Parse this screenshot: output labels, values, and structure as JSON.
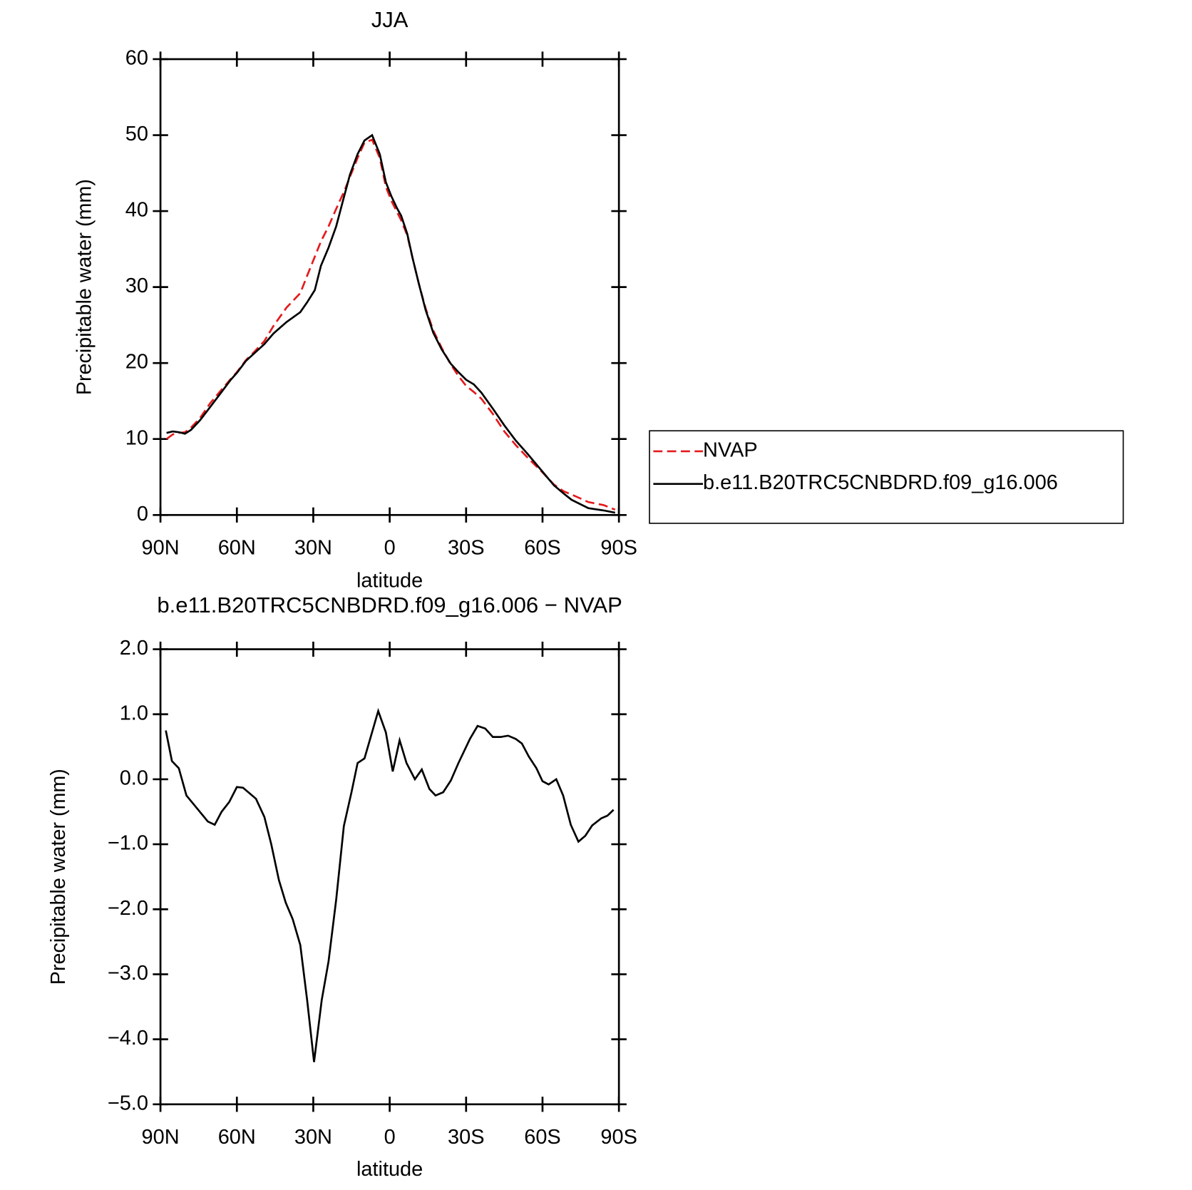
{
  "chart_data": [
    {
      "type": "line",
      "title": "JJA",
      "x_label": "latitude",
      "y_label": "Precipitable water (mm)",
      "xlim": [
        90,
        -90
      ],
      "xticks": [
        {
          "value": 90,
          "label": "90N"
        },
        {
          "value": 60,
          "label": "60N"
        },
        {
          "value": 30,
          "label": "30N"
        },
        0,
        {
          "value": -30,
          "label": "30S"
        },
        {
          "value": -60,
          "label": "60S"
        },
        {
          "value": -90,
          "label": "90S"
        }
      ],
      "ylim": [
        0,
        60
      ],
      "yticks": [
        0,
        10,
        20,
        30,
        40,
        50,
        60
      ],
      "legend": "right",
      "x": [
        87.6,
        85.2,
        82.8,
        80.4,
        78,
        74.4,
        70.5,
        66,
        62.4,
        60,
        56.4,
        53.1,
        49.2,
        45.6,
        40.5,
        35.1,
        32.4,
        29.4,
        27,
        24,
        21,
        18,
        15.6,
        12.6,
        9.9,
        6.9,
        3.9,
        1.5,
        -0.6,
        -3,
        -4.5,
        -6.9,
        -9,
        -11.4,
        -14.1,
        -17.1,
        -20.4,
        -24,
        -27,
        -30,
        -33,
        -36,
        -40.5,
        -45,
        -49.5,
        -54,
        -60,
        -64.5,
        -68.4,
        -71.4,
        -78,
        -84,
        -88.5
      ],
      "series": [
        {
          "name": "NVAP",
          "color": "#e41a1c",
          "style": "dashed",
          "values": [
            10.0,
            10.6,
            10.8,
            10.9,
            11.5,
            12.8,
            14.7,
            16.5,
            17.9,
            18.8,
            20.4,
            21.5,
            22.9,
            24.9,
            27.3,
            29.2,
            31.5,
            34.0,
            36.0,
            38.0,
            40.3,
            42.5,
            44.5,
            47.0,
            49.0,
            49.4,
            47.0,
            43.2,
            41.4,
            39.8,
            38.8,
            36.8,
            33.8,
            30.5,
            27.2,
            24.3,
            22.0,
            19.8,
            18.3,
            17.0,
            16.2,
            15.3,
            13.3,
            11.0,
            9.2,
            7.6,
            5.6,
            4.0,
            3.1,
            2.7,
            1.7,
            1.3,
            0.7
          ]
        },
        {
          "name": "b.e11.B20TRC5CNBDRD.f09_g16.006",
          "color": "#000000",
          "style": "solid",
          "values": [
            10.8,
            11.0,
            10.9,
            10.7,
            11.2,
            12.5,
            14.2,
            16.2,
            17.8,
            18.7,
            20.3,
            21.3,
            22.5,
            23.9,
            25.4,
            26.7,
            28.0,
            29.6,
            32.8,
            35.2,
            38.0,
            41.8,
            44.8,
            47.5,
            49.3,
            50.0,
            47.5,
            43.8,
            42.0,
            40.3,
            39.4,
            37.0,
            33.8,
            30.5,
            27.0,
            24.0,
            21.8,
            19.9,
            18.8,
            17.8,
            17.2,
            16.1,
            14.0,
            11.8,
            9.8,
            8.1,
            5.7,
            3.9,
            2.8,
            2.0,
            0.9,
            0.6,
            0.3
          ]
        }
      ]
    },
    {
      "type": "line",
      "title": "b.e11.B20TRC5CNBDRD.f09_g16.006 − NVAP",
      "x_label": "latitude",
      "y_label": "Precipitable water (mm)",
      "xlim": [
        90,
        -90
      ],
      "xticks": [
        {
          "value": 90,
          "label": "90N"
        },
        {
          "value": 60,
          "label": "60N"
        },
        {
          "value": 30,
          "label": "30N"
        },
        0,
        {
          "value": -30,
          "label": "30S"
        },
        {
          "value": -60,
          "label": "60S"
        },
        {
          "value": -90,
          "label": "90S"
        }
      ],
      "ylim": [
        -5,
        2
      ],
      "yticks": [
        {
          "value": -5,
          "label": "−5.0"
        },
        {
          "value": -4,
          "label": "−4.0"
        },
        {
          "value": -3,
          "label": "−3.0"
        },
        {
          "value": -2,
          "label": "−2.0"
        },
        {
          "value": -1,
          "label": "−1.0"
        },
        {
          "value": 0,
          "label": "0.0"
        },
        {
          "value": 1,
          "label": "1.0"
        },
        {
          "value": 2,
          "label": "2.0"
        }
      ],
      "x": [
        87.9,
        85.5,
        82.8,
        79.8,
        75.6,
        71.4,
        68.7,
        66,
        63,
        60,
        57.6,
        52.5,
        49.2,
        46.5,
        43.5,
        40.8,
        38.1,
        35.1,
        32.4,
        29.7,
        26.7,
        24,
        21,
        18,
        15,
        12.6,
        9.9,
        4.5,
        1.5,
        -1.2,
        -3.9,
        -6.6,
        -9.9,
        -12.6,
        -15.6,
        -18,
        -21,
        -24,
        -27,
        -31.5,
        -34.5,
        -37.5,
        -40.5,
        -43.5,
        -46.5,
        -49.5,
        -51.9,
        -54.6,
        -57.6,
        -60,
        -62.4,
        -65.4,
        -68.1,
        -71.1,
        -74.1,
        -76.8,
        -79.5,
        -83.1,
        -85.5,
        -87.9
      ],
      "series": [
        {
          "color": "#000000",
          "style": "solid",
          "values": [
            0.75,
            0.28,
            0.17,
            -0.25,
            -0.45,
            -0.65,
            -0.7,
            -0.5,
            -0.35,
            -0.12,
            -0.13,
            -0.3,
            -0.58,
            -1.0,
            -1.55,
            -1.9,
            -2.15,
            -2.55,
            -3.4,
            -4.35,
            -3.4,
            -2.8,
            -1.85,
            -0.72,
            -0.2,
            0.25,
            0.32,
            1.05,
            0.72,
            0.12,
            0.6,
            0.25,
            0.0,
            0.15,
            -0.15,
            -0.25,
            -0.2,
            -0.02,
            0.25,
            0.62,
            0.82,
            0.78,
            0.65,
            0.65,
            0.67,
            0.62,
            0.55,
            0.35,
            0.17,
            -0.03,
            -0.08,
            0.0,
            -0.25,
            -0.7,
            -0.96,
            -0.87,
            -0.71,
            -0.6,
            -0.56,
            -0.47
          ]
        }
      ]
    }
  ]
}
